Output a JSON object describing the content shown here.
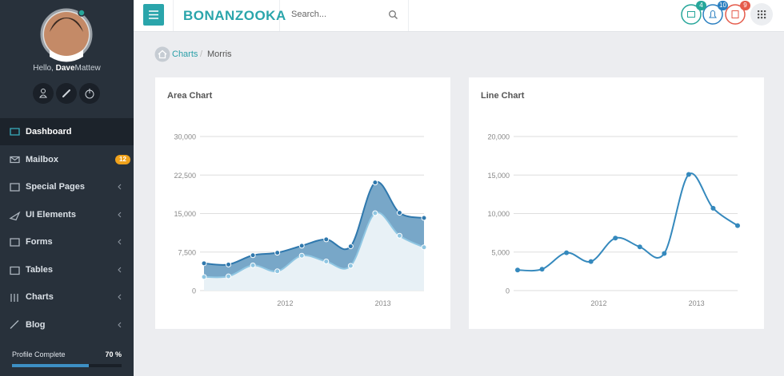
{
  "sidebar": {
    "greeting": "Hello,",
    "user_first": "Dave",
    "user_last": "Mattew",
    "nav": [
      {
        "label": "Dashboard"
      },
      {
        "label": "Mailbox",
        "badge": 12
      },
      {
        "label": "Special Pages"
      },
      {
        "label": "UI Elements"
      },
      {
        "label": "Forms"
      },
      {
        "label": "Tables"
      },
      {
        "label": "Charts"
      },
      {
        "label": "Blog"
      }
    ],
    "profile": {
      "label": "Profile Complete",
      "value": 70,
      "value_label": "70 %"
    }
  },
  "header": {
    "logo": "BONANZOOKA",
    "search_placeholder": "Search...",
    "notifications": [
      4,
      10,
      9
    ]
  },
  "breadcrumb": [
    "Charts",
    "Morris"
  ],
  "chart_data": [
    {
      "type": "area",
      "title": "Area Chart",
      "stacked": true,
      "x": [
        2011.17,
        2011.42,
        2011.67,
        2011.92,
        2012.17,
        2012.42,
        2012.67,
        2012.92,
        2013.17,
        2013.42
      ],
      "xlim": [
        2011.17,
        2013.42
      ],
      "xticks": [
        2012,
        2013
      ],
      "ylim": [
        0,
        30000
      ],
      "yticks": [
        0,
        {
          "value": 7500,
          "label": "7,500"
        },
        {
          "value": 15000,
          "label": "15,000"
        },
        {
          "value": 22500,
          "label": "22,500"
        },
        {
          "value": 30000,
          "label": "30,000"
        }
      ],
      "grid": true,
      "series": [
        {
          "color": "#8fc6e2",
          "fill": "#e8f1f6",
          "values": [
            2666,
            2778,
            4912,
            3767,
            6810,
            5670,
            4820,
            15073,
            10687,
            8432
          ]
        },
        {
          "color": "#2f78ad",
          "fill": "#78a7c8",
          "values": [
            2647,
            2294,
            1969,
            3597,
            1914,
            4293,
            3795,
            5967,
            4460,
            5713
          ]
        }
      ]
    },
    {
      "type": "line",
      "title": "Line Chart",
      "x": [
        2011.17,
        2011.42,
        2011.67,
        2011.92,
        2012.17,
        2012.42,
        2012.67,
        2012.92,
        2013.17,
        2013.42
      ],
      "xlim": [
        2011.17,
        2013.42
      ],
      "xticks": [
        2012,
        2013
      ],
      "ylim": [
        0,
        20000
      ],
      "yticks": [
        0,
        {
          "value": 5000,
          "label": "5,000"
        },
        {
          "value": 10000,
          "label": "10,000"
        },
        {
          "value": 15000,
          "label": "15,000"
        },
        {
          "value": 20000,
          "label": "20,000"
        }
      ],
      "grid": true,
      "series": [
        {
          "color": "#3589bd",
          "values": [
            2666,
            2778,
            4912,
            3767,
            6810,
            5670,
            4820,
            15073,
            10687,
            8432
          ]
        }
      ]
    }
  ]
}
